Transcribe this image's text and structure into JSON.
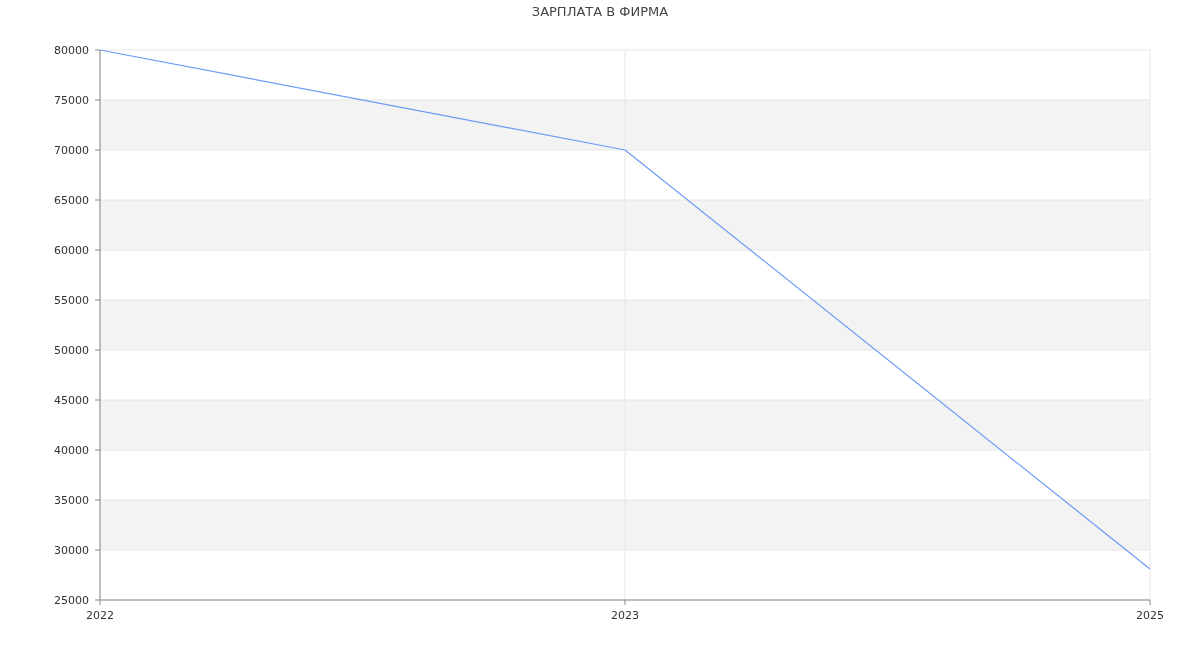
{
  "chart_data": {
    "type": "line",
    "title": "ЗАРПЛАТА В ФИРМА",
    "categories": [
      "2022",
      "2023",
      "2025"
    ],
    "series": [
      {
        "color": "#6b9bf7",
        "values": [
          80000,
          70000,
          28100
        ]
      }
    ],
    "ylim": [
      25000,
      80000
    ],
    "yticks": [
      25000,
      30000,
      35000,
      40000,
      45000,
      50000,
      55000,
      60000,
      65000,
      70000,
      75000,
      80000
    ],
    "grid": true,
    "marker": "none",
    "line_style": "solid"
  }
}
